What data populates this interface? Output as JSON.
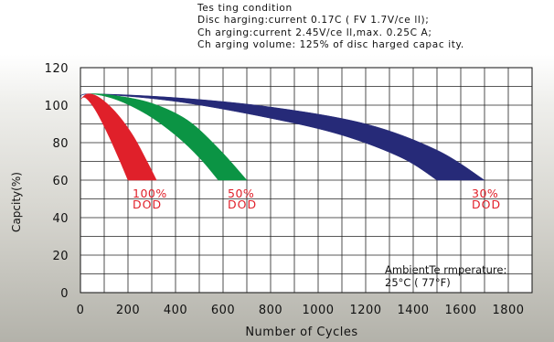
{
  "testing_condition": {
    "title": "Tes ting condition",
    "line1": "Disc harging:current 0.17C ( FV  1.7V/ce ll);",
    "line2": "Ch arging:current 2.45V/ce ll,max. 0.25C A;",
    "line3": "Ch arging volume: 125% of disc harged capac ity."
  },
  "ambient": {
    "line1": "AmbientTe rmperature:",
    "line2": "25°C ( 77°F)"
  },
  "colors": {
    "dod100": "#e0202a",
    "dod50": "#0b9444",
    "dod30": "#262a78",
    "label": "#e0202a"
  },
  "chart_data": {
    "type": "area",
    "xlabel": "Number of Cycles",
    "ylabel": "Capcity(%)",
    "xlim": [
      0,
      1900
    ],
    "ylim": [
      0,
      120
    ],
    "xticks": [
      "0",
      "200",
      "400",
      "600",
      "800",
      "1000",
      "1200",
      "1400",
      "1600",
      "1800"
    ],
    "yticks": [
      "0",
      "20",
      "40",
      "60",
      "80",
      "100",
      "120"
    ],
    "grid": true,
    "series": [
      {
        "name": "100% DOD",
        "label_line1": "100%",
        "label_line2": "DOD",
        "color": "#e0202a",
        "upper": [
          [
            0,
            103
          ],
          [
            30,
            106
          ],
          [
            80,
            104
          ],
          [
            150,
            96
          ],
          [
            220,
            84
          ],
          [
            280,
            70
          ],
          [
            320,
            60
          ]
        ],
        "lower": [
          [
            0,
            103
          ],
          [
            20,
            104
          ],
          [
            60,
            98
          ],
          [
            110,
            86
          ],
          [
            160,
            72
          ],
          [
            200,
            60
          ]
        ]
      },
      {
        "name": "50% DOD",
        "label_line1": "50%",
        "label_line2": "DOD",
        "color": "#0b9444",
        "upper": [
          [
            0,
            103
          ],
          [
            40,
            106
          ],
          [
            150,
            105
          ],
          [
            300,
            101
          ],
          [
            450,
            92
          ],
          [
            580,
            77
          ],
          [
            700,
            60
          ]
        ],
        "lower": [
          [
            0,
            103
          ],
          [
            40,
            106
          ],
          [
            150,
            103
          ],
          [
            280,
            95
          ],
          [
            400,
            84
          ],
          [
            500,
            72
          ],
          [
            580,
            60
          ]
        ]
      },
      {
        "name": "30% DOD",
        "label_line1": "30%",
        "label_line2": "DOD",
        "color": "#262a78",
        "upper": [
          [
            0,
            104
          ],
          [
            50,
            106
          ],
          [
            400,
            104
          ],
          [
            800,
            99
          ],
          [
            1200,
            90
          ],
          [
            1500,
            76
          ],
          [
            1700,
            60
          ]
        ],
        "lower": [
          [
            0,
            104
          ],
          [
            50,
            106
          ],
          [
            400,
            102
          ],
          [
            800,
            93
          ],
          [
            1100,
            84
          ],
          [
            1350,
            72
          ],
          [
            1500,
            60
          ]
        ]
      }
    ]
  }
}
